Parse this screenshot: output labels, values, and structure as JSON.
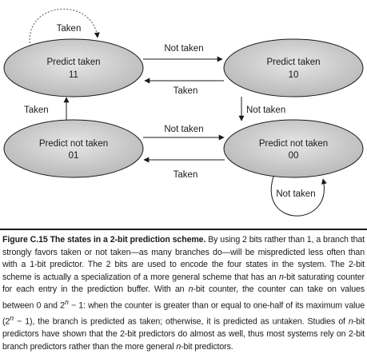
{
  "states": [
    {
      "id": "s11",
      "name": "Predict taken",
      "code": "11"
    },
    {
      "id": "s10",
      "name": "Predict taken",
      "code": "10"
    },
    {
      "id": "s01",
      "name": "Predict not taken",
      "code": "01"
    },
    {
      "id": "s00",
      "name": "Predict not taken",
      "code": "00"
    }
  ],
  "transitions": {
    "s11_self": "Taken",
    "s11_to_s10": "Not taken",
    "s10_to_s11": "Taken",
    "s10_to_s00": "Not taken",
    "s01_to_s11": "Taken",
    "s01_to_s00": "Not taken",
    "s00_to_s01": "Taken",
    "s00_self": "Not taken"
  },
  "caption": {
    "label": "Figure C.15",
    "title": "The states in a 2-bit prediction scheme.",
    "body_1": "By using 2 bits rather than 1, a branch that strongly favors taken or not taken—as many branches do—will be mispredicted less often than with a 1-bit predictor. The 2 bits are used to encode the four states in the system. The 2-bit scheme is actually a specialization of a more general scheme that has an ",
    "italic_n1": "n",
    "body_2": "-bit saturating counter for each entry in the prediction buffer. With an ",
    "italic_n2": "n",
    "body_3": "-bit counter, the counter can take on values between 0 and 2",
    "sup_n1": "n",
    "body_4": " − 1: when the counter is greater than or equal to one-half of its maximum value (2",
    "sup_n2": "n",
    "body_5": " − 1), the branch is predicted as taken; otherwise, it is predicted as untaken. Studies of ",
    "italic_n3": "n",
    "body_6": "-bit predictors have shown that the 2-bit predictors do almost as well, thus most systems rely on 2-bit branch predictors rather than the more general ",
    "italic_n4": "n",
    "body_7": "-bit predictors."
  }
}
